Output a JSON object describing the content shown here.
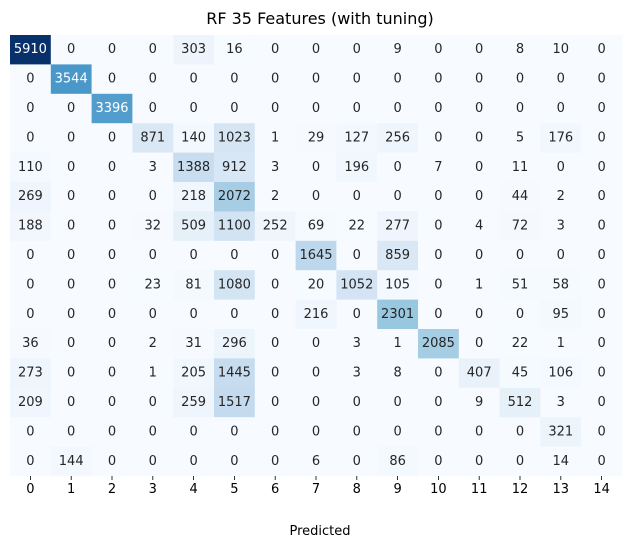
{
  "chart_data": {
    "type": "heatmap",
    "title": "RF 35 Features (with tuning)",
    "xlabel": "Predicted",
    "ylabel": "",
    "x_ticks": [
      "0",
      "1",
      "2",
      "3",
      "4",
      "5",
      "6",
      "7",
      "8",
      "9",
      "10",
      "11",
      "12",
      "13",
      "14"
    ],
    "y_ticks": [],
    "colormap": "Blues",
    "colorbar": false,
    "matrix": [
      [
        5910,
        0,
        0,
        0,
        303,
        16,
        0,
        0,
        0,
        9,
        0,
        0,
        8,
        10,
        0
      ],
      [
        0,
        3544,
        0,
        0,
        0,
        0,
        0,
        0,
        0,
        0,
        0,
        0,
        0,
        0,
        0
      ],
      [
        0,
        0,
        3396,
        0,
        0,
        0,
        0,
        0,
        0,
        0,
        0,
        0,
        0,
        0,
        0
      ],
      [
        0,
        0,
        0,
        871,
        140,
        1023,
        1,
        29,
        127,
        256,
        0,
        0,
        5,
        176,
        0
      ],
      [
        110,
        0,
        0,
        3,
        1388,
        912,
        3,
        0,
        196,
        0,
        7,
        0,
        11,
        0,
        0
      ],
      [
        269,
        0,
        0,
        0,
        218,
        2072,
        2,
        0,
        0,
        0,
        0,
        0,
        44,
        2,
        0
      ],
      [
        188,
        0,
        0,
        32,
        509,
        1100,
        252,
        69,
        22,
        277,
        0,
        4,
        72,
        3,
        0
      ],
      [
        0,
        0,
        0,
        0,
        0,
        0,
        0,
        1645,
        0,
        859,
        0,
        0,
        0,
        0,
        0
      ],
      [
        0,
        0,
        0,
        23,
        81,
        1080,
        0,
        20,
        1052,
        105,
        0,
        1,
        51,
        58,
        0
      ],
      [
        0,
        0,
        0,
        0,
        0,
        0,
        0,
        216,
        0,
        2301,
        0,
        0,
        0,
        95,
        0
      ],
      [
        36,
        0,
        0,
        2,
        31,
        296,
        0,
        0,
        3,
        1,
        2085,
        0,
        22,
        1,
        0
      ],
      [
        273,
        0,
        0,
        1,
        205,
        1445,
        0,
        0,
        3,
        8,
        0,
        407,
        45,
        106,
        0
      ],
      [
        209,
        0,
        0,
        0,
        259,
        1517,
        0,
        0,
        0,
        0,
        0,
        9,
        512,
        3,
        0
      ],
      [
        0,
        0,
        0,
        0,
        0,
        0,
        0,
        0,
        0,
        0,
        0,
        0,
        0,
        321,
        0
      ],
      [
        0,
        144,
        0,
        0,
        0,
        0,
        0,
        6,
        0,
        86,
        0,
        0,
        0,
        14,
        0
      ]
    ]
  }
}
